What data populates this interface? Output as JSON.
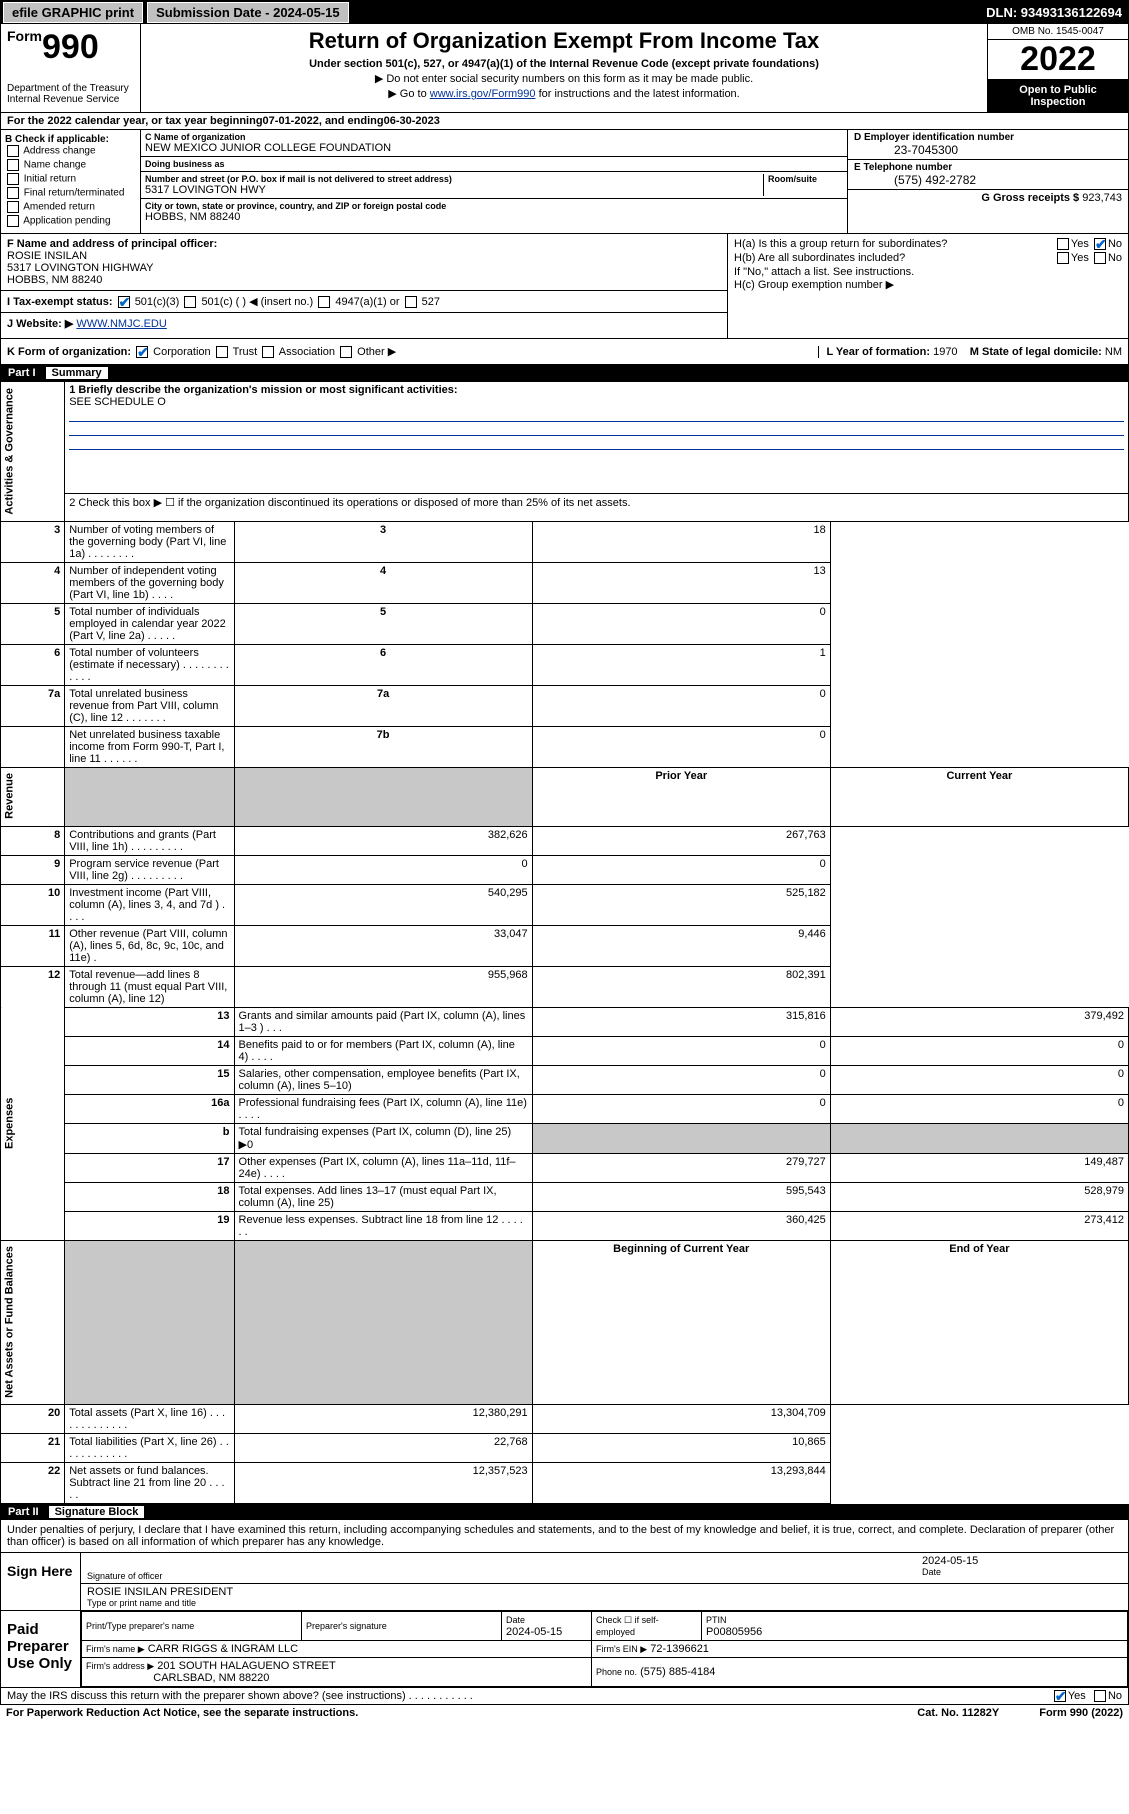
{
  "topbar": {
    "efile": "efile GRAPHIC print",
    "submission_label": "Submission Date - 2024-05-15",
    "dln_label": "DLN: 93493136122694"
  },
  "header": {
    "form_small": "Form",
    "form_big": "990",
    "title": "Return of Organization Exempt From Income Tax",
    "sub1": "Under section 501(c), 527, or 4947(a)(1) of the Internal Revenue Code (except private foundations)",
    "sub2": "▶ Do not enter social security numbers on this form as it may be made public.",
    "sub3_pre": "▶ Go to ",
    "sub3_link": "www.irs.gov/Form990",
    "sub3_post": " for instructions and the latest information.",
    "dept": "Department of the Treasury\nInternal Revenue Service",
    "omb": "OMB No. 1545-0047",
    "year": "2022",
    "open": "Open to Public Inspection"
  },
  "line_a": {
    "text": "For the 2022 calendar year, or tax year beginning ",
    "begin": "07-01-2022",
    "mid": " , and ending ",
    "end": "06-30-2023"
  },
  "box_b": {
    "title": "B Check if applicable:",
    "items": [
      "Address change",
      "Name change",
      "Initial return",
      "Final return/terminated",
      "Amended return",
      "Application pending"
    ]
  },
  "box_c": {
    "name_lbl": "C Name of organization",
    "name": "NEW MEXICO JUNIOR COLLEGE FOUNDATION",
    "dba_lbl": "Doing business as",
    "dba": "",
    "addr_lbl": "Number and street (or P.O. box if mail is not delivered to street address)",
    "room_lbl": "Room/suite",
    "addr": "5317 LOVINGTON HWY",
    "city_lbl": "City or town, state or province, country, and ZIP or foreign postal code",
    "city": "HOBBS, NM  88240"
  },
  "box_d": {
    "lbl": "D Employer identification number",
    "val": "23-7045300"
  },
  "box_e": {
    "lbl": "E Telephone number",
    "val": "(575) 492-2782"
  },
  "box_g": {
    "lbl": "G Gross receipts $",
    "val": "923,743"
  },
  "box_f": {
    "lbl": "F Name and address of principal officer:",
    "name": "ROSIE INSILAN",
    "addr": "5317 LOVINGTON HIGHWAY",
    "city": "HOBBS, NM  88240"
  },
  "box_h": {
    "ha": "H(a)  Is this a group return for subordinates?",
    "hb": "H(b)  Are all subordinates included?",
    "hb_note": "If \"No,\" attach a list. See instructions.",
    "hc": "H(c)  Group exemption number ▶",
    "yes": "Yes",
    "no": "No"
  },
  "box_i": {
    "lbl": "I     Tax-exempt status:",
    "c3": "501(c)(3)",
    "c": "501(c) (   ) ◀ (insert no.)",
    "a1": "4947(a)(1) or",
    "s527": "527"
  },
  "box_j": {
    "lbl": "J     Website: ▶",
    "val": "WWW.NMJC.EDU"
  },
  "box_k": {
    "lbl": "K Form of organization:",
    "corp": "Corporation",
    "trust": "Trust",
    "assoc": "Association",
    "other": "Other ▶"
  },
  "box_l": {
    "lbl": "L Year of formation:",
    "val": "1970"
  },
  "box_m": {
    "lbl": "M State of legal domicile:",
    "val": "NM"
  },
  "part1": {
    "num": "Part I",
    "title": "Summary"
  },
  "summary": {
    "mission_lbl": "1   Briefly describe the organization's mission or most significant activities:",
    "mission": "SEE SCHEDULE O",
    "line2": "2   Check this box ▶ ☐  if the organization discontinued its operations or disposed of more than 25% of its net assets.",
    "vlabels": {
      "gov": "Activities & Governance",
      "rev": "Revenue",
      "exp": "Expenses",
      "net": "Net Assets or Fund Balances"
    },
    "hdr_prior": "Prior Year",
    "hdr_current": "Current Year",
    "hdr_begin": "Beginning of Current Year",
    "hdr_end": "End of Year",
    "rows_gov": [
      {
        "n": "3",
        "d": "Number of voting members of the governing body (Part VI, line 1a)  .  .  .  .  .  .  .  .",
        "b": "3",
        "v": "18"
      },
      {
        "n": "4",
        "d": "Number of independent voting members of the governing body (Part VI, line 1b)  .  .  .  .",
        "b": "4",
        "v": "13"
      },
      {
        "n": "5",
        "d": "Total number of individuals employed in calendar year 2022 (Part V, line 2a)  .  .  .  .  .",
        "b": "5",
        "v": "0"
      },
      {
        "n": "6",
        "d": "Total number of volunteers (estimate if necessary)  .  .  .  .  .  .  .  .  .  .  .  .",
        "b": "6",
        "v": "1"
      },
      {
        "n": "7a",
        "d": "Total unrelated business revenue from Part VIII, column (C), line 12  .  .  .  .  .  .  .",
        "b": "7a",
        "v": "0"
      },
      {
        "n": "",
        "d": "Net unrelated business taxable income from Form 990-T, Part I, line 11  .  .  .  .  .  .",
        "b": "7b",
        "v": "0"
      }
    ],
    "rows_rev": [
      {
        "n": "8",
        "d": "Contributions and grants (Part VIII, line 1h)  .  .  .  .  .  .  .  .  .",
        "p": "382,626",
        "c": "267,763"
      },
      {
        "n": "9",
        "d": "Program service revenue (Part VIII, line 2g)  .  .  .  .  .  .  .  .  .",
        "p": "0",
        "c": "0"
      },
      {
        "n": "10",
        "d": "Investment income (Part VIII, column (A), lines 3, 4, and 7d )  .  .  .  .",
        "p": "540,295",
        "c": "525,182"
      },
      {
        "n": "11",
        "d": "Other revenue (Part VIII, column (A), lines 5, 6d, 8c, 9c, 10c, and 11e)  .",
        "p": "33,047",
        "c": "9,446"
      },
      {
        "n": "12",
        "d": "Total revenue—add lines 8 through 11 (must equal Part VIII, column (A), line 12)",
        "p": "955,968",
        "c": "802,391"
      }
    ],
    "rows_exp": [
      {
        "n": "13",
        "d": "Grants and similar amounts paid (Part IX, column (A), lines 1–3 )  .  .  .",
        "p": "315,816",
        "c": "379,492"
      },
      {
        "n": "14",
        "d": "Benefits paid to or for members (Part IX, column (A), line 4)  .  .  .  .",
        "p": "0",
        "c": "0"
      },
      {
        "n": "15",
        "d": "Salaries, other compensation, employee benefits (Part IX, column (A), lines 5–10)",
        "p": "0",
        "c": "0"
      },
      {
        "n": "16a",
        "d": "Professional fundraising fees (Part IX, column (A), line 11e)  .  .  .  .",
        "p": "0",
        "c": "0"
      },
      {
        "n": "b",
        "d": "Total fundraising expenses (Part IX, column (D), line 25) ▶0",
        "shade": true
      },
      {
        "n": "17",
        "d": "Other expenses (Part IX, column (A), lines 11a–11d, 11f–24e)  .  .  .  .",
        "p": "279,727",
        "c": "149,487"
      },
      {
        "n": "18",
        "d": "Total expenses. Add lines 13–17 (must equal Part IX, column (A), line 25)",
        "p": "595,543",
        "c": "528,979"
      },
      {
        "n": "19",
        "d": "Revenue less expenses. Subtract line 18 from line 12  .  .  .  .  .  .",
        "p": "360,425",
        "c": "273,412"
      }
    ],
    "rows_net": [
      {
        "n": "20",
        "d": "Total assets (Part X, line 16)  .  .  .  .  .  .  .  .  .  .  .  .  .",
        "p": "12,380,291",
        "c": "13,304,709"
      },
      {
        "n": "21",
        "d": "Total liabilities (Part X, line 26)  .  .  .  .  .  .  .  .  .  .  .  .",
        "p": "22,768",
        "c": "10,865"
      },
      {
        "n": "22",
        "d": "Net assets or fund balances. Subtract line 21 from line 20  .  .  .  .  .",
        "p": "12,357,523",
        "c": "13,293,844"
      }
    ]
  },
  "part2": {
    "num": "Part II",
    "title": "Signature Block"
  },
  "sig": {
    "decl": "Under penalties of perjury, I declare that I have examined this return, including accompanying schedules and statements, and to the best of my knowledge and belief, it is true, correct, and complete. Declaration of preparer (other than officer) is based on all information of which preparer has any knowledge.",
    "sign_here": "Sign Here",
    "sig_officer": "Signature of officer",
    "date": "Date",
    "date_val": "2024-05-15",
    "name_title": "ROSIE INSILAN  PRESIDENT",
    "name_title_lbl": "Type or print name and title"
  },
  "prep": {
    "title": "Paid Preparer Use Only",
    "print_lbl": "Print/Type preparer's name",
    "sig_lbl": "Preparer's signature",
    "date_lbl": "Date",
    "date_val": "2024-05-15",
    "check_lbl": "Check ☐ if self-employed",
    "ptin_lbl": "PTIN",
    "ptin": "P00805956",
    "firm_name_lbl": "Firm's name    ▶",
    "firm_name": "CARR RIGGS & INGRAM LLC",
    "firm_ein_lbl": "Firm's EIN ▶",
    "firm_ein": "72-1396621",
    "firm_addr_lbl": "Firm's address ▶",
    "firm_addr1": "201 SOUTH HALAGUENO STREET",
    "firm_addr2": "CARLSBAD, NM  88220",
    "phone_lbl": "Phone no.",
    "phone": "(575) 885-4184"
  },
  "footer": {
    "discuss": "May the IRS discuss this return with the preparer shown above? (see instructions)  .  .  .  .  .  .  .  .  .  .  .",
    "yes": "Yes",
    "no": "No",
    "pra": "For Paperwork Reduction Act Notice, see the separate instructions.",
    "cat": "Cat. No. 11282Y",
    "form": "Form 990 (2022)"
  }
}
